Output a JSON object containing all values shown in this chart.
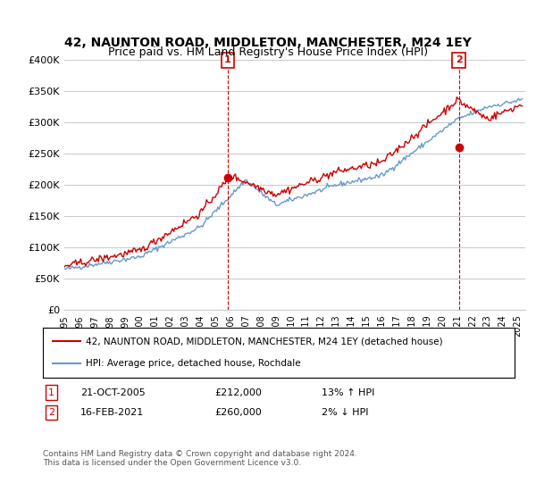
{
  "title": "42, NAUNTON ROAD, MIDDLETON, MANCHESTER, M24 1EY",
  "subtitle": "Price paid vs. HM Land Registry's House Price Index (HPI)",
  "ylabel_ticks": [
    "£0",
    "£50K",
    "£100K",
    "£150K",
    "£200K",
    "£250K",
    "£300K",
    "£350K",
    "£400K"
  ],
  "ytick_values": [
    0,
    50000,
    100000,
    150000,
    200000,
    250000,
    300000,
    350000,
    400000
  ],
  "ylim": [
    0,
    400000
  ],
  "xlim_start": 1995.0,
  "xlim_end": 2025.5,
  "transaction1": {
    "date_num": 2005.8,
    "value": 212000,
    "label": "1",
    "pct": "13%",
    "dir": "↑",
    "date_str": "21-OCT-2005"
  },
  "transaction2": {
    "date_num": 2021.1,
    "value": 260000,
    "label": "2",
    "pct": "2%",
    "dir": "↓",
    "date_str": "16-FEB-2021"
  },
  "legend_line1": "42, NAUNTON ROAD, MIDDLETON, MANCHESTER, M24 1EY (detached house)",
  "legend_line2": "HPI: Average price, detached house, Rochdale",
  "table_row1": [
    "1",
    "21-OCT-2005",
    "£212,000",
    "13% ↑ HPI"
  ],
  "table_row2": [
    "2",
    "16-FEB-2021",
    "£260,000",
    "2% ↓ HPI"
  ],
  "footer": "Contains HM Land Registry data © Crown copyright and database right 2024.\nThis data is licensed under the Open Government Licence v3.0.",
  "line_red_color": "#cc0000",
  "line_blue_color": "#6699cc",
  "vline_color": "#cc0000",
  "grid_color": "#cccccc",
  "background_color": "#ffffff",
  "title_fontsize": 10,
  "subtitle_fontsize": 9,
  "tick_fontsize": 8
}
